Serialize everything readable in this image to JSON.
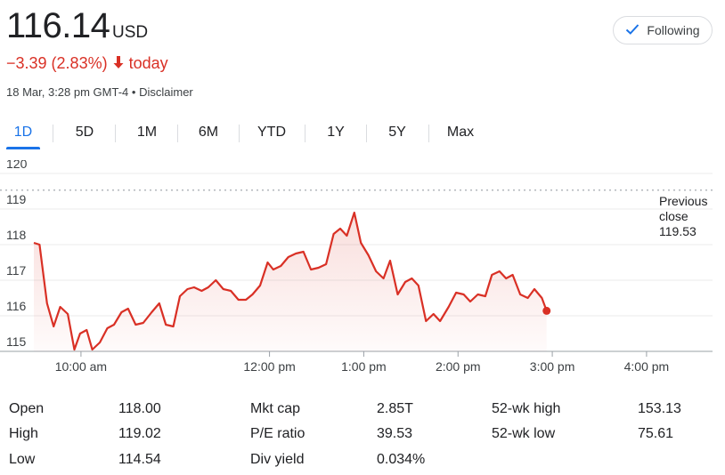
{
  "quote": {
    "price": "116.14",
    "currency": "USD",
    "change": "−3.39 (2.83%)",
    "change_suffix": "today",
    "timestamp": "18 Mar, 3:28 pm GMT-4",
    "separator": "•",
    "disclaimer": "Disclaimer"
  },
  "follow_button": {
    "label": "Following"
  },
  "tabs": [
    {
      "label": "1D",
      "active": true
    },
    {
      "label": "5D"
    },
    {
      "label": "1M"
    },
    {
      "label": "6M"
    },
    {
      "label": "YTD"
    },
    {
      "label": "1Y"
    },
    {
      "label": "5Y"
    },
    {
      "label": "Max"
    }
  ],
  "colors": {
    "accent": "#1a73e8",
    "negative": "#d93025"
  },
  "chart_data": {
    "type": "line",
    "y_ticks": [
      "115",
      "116",
      "117",
      "118",
      "119",
      "120"
    ],
    "ylim": [
      115,
      120.5
    ],
    "x_ticks": [
      {
        "label": "10:00 am",
        "t": 10.0
      },
      {
        "label": "12:00 pm",
        "t": 12.0
      },
      {
        "label": "1:00 pm",
        "t": 13.0
      },
      {
        "label": "2:00 pm",
        "t": 14.0
      },
      {
        "label": "3:00 pm",
        "t": 15.0
      },
      {
        "label": "4:00 pm",
        "t": 16.0
      }
    ],
    "xlim": [
      9.5,
      16.7
    ],
    "reference_line": {
      "label_lines": [
        "Previous",
        "close",
        "119.53"
      ],
      "value": 119.53
    },
    "series": [
      {
        "points": [
          [
            9.5,
            118.05
          ],
          [
            9.56,
            118.0
          ],
          [
            9.64,
            116.35
          ],
          [
            9.71,
            115.7
          ],
          [
            9.78,
            116.25
          ],
          [
            9.86,
            116.05
          ],
          [
            9.93,
            115.05
          ],
          [
            9.99,
            115.5
          ],
          [
            10.06,
            115.6
          ],
          [
            10.12,
            115.05
          ],
          [
            10.2,
            115.25
          ],
          [
            10.28,
            115.65
          ],
          [
            10.35,
            115.75
          ],
          [
            10.43,
            116.1
          ],
          [
            10.5,
            116.2
          ],
          [
            10.58,
            115.75
          ],
          [
            10.66,
            115.8
          ],
          [
            10.75,
            116.1
          ],
          [
            10.83,
            116.35
          ],
          [
            10.9,
            115.75
          ],
          [
            10.98,
            115.7
          ],
          [
            11.05,
            116.55
          ],
          [
            11.13,
            116.75
          ],
          [
            11.2,
            116.8
          ],
          [
            11.28,
            116.7
          ],
          [
            11.35,
            116.8
          ],
          [
            11.43,
            117.0
          ],
          [
            11.51,
            116.75
          ],
          [
            11.59,
            116.7
          ],
          [
            11.67,
            116.45
          ],
          [
            11.75,
            116.45
          ],
          [
            11.82,
            116.6
          ],
          [
            11.9,
            116.85
          ],
          [
            11.98,
            117.5
          ],
          [
            12.04,
            117.3
          ],
          [
            12.12,
            117.4
          ],
          [
            12.2,
            117.65
          ],
          [
            12.28,
            117.75
          ],
          [
            12.36,
            117.8
          ],
          [
            12.44,
            117.3
          ],
          [
            12.52,
            117.35
          ],
          [
            12.6,
            117.45
          ],
          [
            12.68,
            118.3
          ],
          [
            12.75,
            118.45
          ],
          [
            12.82,
            118.25
          ],
          [
            12.9,
            118.9
          ],
          [
            12.97,
            118.05
          ],
          [
            13.05,
            117.7
          ],
          [
            13.13,
            117.25
          ],
          [
            13.21,
            117.05
          ],
          [
            13.28,
            117.55
          ],
          [
            13.36,
            116.6
          ],
          [
            13.44,
            116.95
          ],
          [
            13.51,
            117.05
          ],
          [
            13.58,
            116.85
          ],
          [
            13.66,
            115.85
          ],
          [
            13.74,
            116.05
          ],
          [
            13.81,
            115.85
          ],
          [
            13.9,
            116.25
          ],
          [
            13.98,
            116.65
          ],
          [
            14.06,
            116.6
          ],
          [
            14.13,
            116.4
          ],
          [
            14.21,
            116.6
          ],
          [
            14.29,
            116.55
          ],
          [
            14.36,
            117.15
          ],
          [
            14.44,
            117.25
          ],
          [
            14.51,
            117.05
          ],
          [
            14.58,
            117.15
          ],
          [
            14.66,
            116.6
          ],
          [
            14.74,
            116.5
          ],
          [
            14.81,
            116.75
          ],
          [
            14.89,
            116.5
          ],
          [
            14.94,
            116.14
          ]
        ]
      }
    ]
  },
  "stats": [
    {
      "label": "Open",
      "value": "118.00"
    },
    {
      "label": "High",
      "value": "119.02"
    },
    {
      "label": "Low",
      "value": "114.54"
    },
    {
      "label": "Mkt cap",
      "value": "2.85T"
    },
    {
      "label": "P/E ratio",
      "value": "39.53"
    },
    {
      "label": "Div yield",
      "value": "0.034%"
    },
    {
      "label": "52-wk high",
      "value": "153.13"
    },
    {
      "label": "52-wk low",
      "value": "75.61"
    }
  ]
}
